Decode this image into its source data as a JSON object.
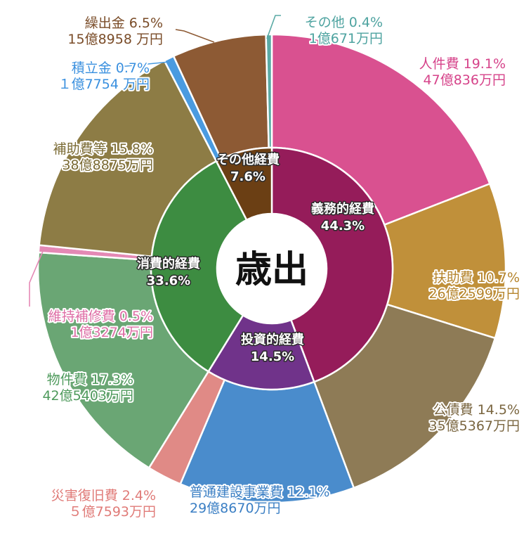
{
  "chart_data": {
    "type": "pie",
    "variant": "two-level donut",
    "title": "歳出",
    "inner_ring": [
      {
        "label": "義務的経費",
        "percent": "44.3%",
        "value": 44.3,
        "color": "#951c5a"
      },
      {
        "label": "投資的経費",
        "percent": "14.5%",
        "value": 14.5,
        "color": "#70338a"
      },
      {
        "label": "消費的経費",
        "percent": "33.6%",
        "value": 33.6,
        "color": "#3d8c41"
      },
      {
        "label": "その他経費",
        "percent": "7.6%",
        "value": 7.6,
        "color": "#6b3f14"
      }
    ],
    "outer_ring": [
      {
        "label": "人件費",
        "percent": "19.1%",
        "amount": "47億836万円",
        "value": 19.1,
        "color": "#d95190",
        "text_color": "#d6438a"
      },
      {
        "label": "扶助費",
        "percent": "10.7%",
        "amount": "26億2599万円",
        "value": 10.7,
        "color": "#c0903a",
        "text_color": "#b5842c"
      },
      {
        "label": "公債費",
        "percent": "14.5%",
        "amount": "35億5367万円",
        "value": 14.5,
        "color": "#8e7b56",
        "text_color": "#7a6640"
      },
      {
        "label": "普通建設事業費",
        "percent": "12.1%",
        "amount": "29億8670万円",
        "value": 12.1,
        "color": "#4a8ccc",
        "text_color": "#3b7fc4"
      },
      {
        "label": "災害復旧費",
        "percent": "2.4%",
        "amount": "５億7593万円",
        "value": 2.4,
        "color": "#e08a86",
        "text_color": "#e07b78"
      },
      {
        "label": "物件費",
        "percent": "17.3%",
        "amount": "42億5403万円",
        "value": 17.3,
        "color": "#6aa674",
        "text_color": "#4e9a5c"
      },
      {
        "label": "維持補修費",
        "percent": "0.5%",
        "amount": "1億3274万円",
        "value": 0.5,
        "color": "#e489b5",
        "text_color": "#de6fa6"
      },
      {
        "label": "補助費等",
        "percent": "15.8%",
        "amount": "38億8875万円",
        "value": 15.8,
        "color": "#8d7c45",
        "text_color": "#7a6a33"
      },
      {
        "label": "積立金",
        "percent": "0.7%",
        "amount": "１億7754 万円",
        "value": 0.7,
        "color": "#4a9be0",
        "text_color": "#3a90df"
      },
      {
        "label": "繰出金",
        "percent": "6.5%",
        "amount": "15億8958 万円",
        "value": 6.5,
        "color": "#8d5a34",
        "text_color": "#7a4c28"
      },
      {
        "label": "その他",
        "percent": "0.4%",
        "amount": "1億671万円",
        "value": 0.4,
        "color": "#5aaaa5",
        "text_color": "#4ea3a0"
      }
    ]
  }
}
